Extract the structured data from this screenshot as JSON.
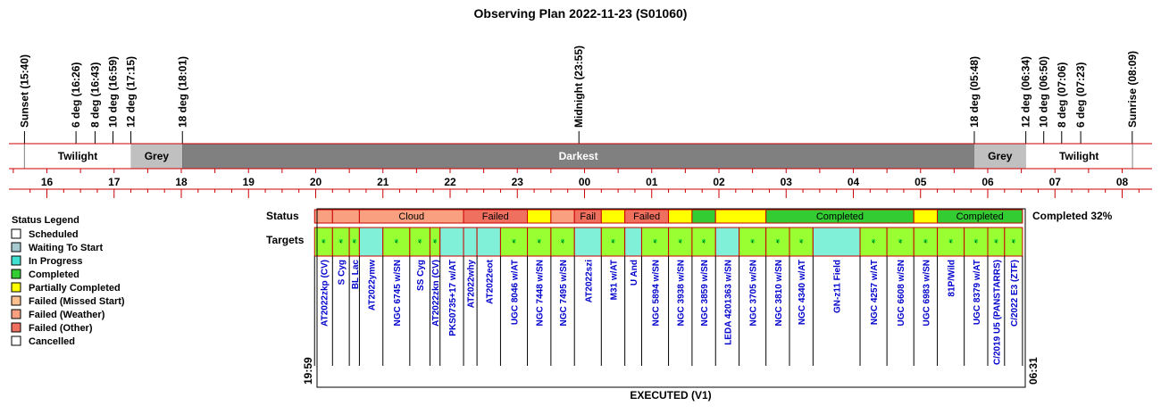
{
  "title": "Observing Plan 2022-11-23 (S01060)",
  "events": [
    {
      "label": "Sunset (15:40)",
      "t": 15.6667
    },
    {
      "label": "6 deg (16:26)",
      "t": 16.4333
    },
    {
      "label": "8 deg (16:43)",
      "t": 16.7167
    },
    {
      "label": "10 deg (16:59)",
      "t": 16.9833
    },
    {
      "label": "12 deg (17:15)",
      "t": 17.25
    },
    {
      "label": "18 deg (18:01)",
      "t": 18.0167
    },
    {
      "label": "Midnight (23:55)",
      "t": 23.9167
    },
    {
      "label": "18 deg (05:48)",
      "t": 29.8
    },
    {
      "label": "12 deg (06:34)",
      "t": 30.5667
    },
    {
      "label": "10 deg (06:50)",
      "t": 30.8333
    },
    {
      "label": "8 deg (07:06)",
      "t": 31.1
    },
    {
      "label": "6 deg (07:23)",
      "t": 31.3833
    },
    {
      "label": "Sunrise (08:09)",
      "t": 32.15
    }
  ],
  "bands": [
    {
      "label": "Twilight",
      "start": 15.6667,
      "end": 17.25,
      "color": "#ffffff"
    },
    {
      "label": "Grey",
      "start": 17.25,
      "end": 18.0167,
      "color": "#c0c0c0"
    },
    {
      "label": "Darkest",
      "start": 18.0167,
      "end": 29.8,
      "color": "#808080"
    },
    {
      "label": "Grey",
      "start": 29.8,
      "end": 30.5667,
      "color": "#c0c0c0"
    },
    {
      "label": "Twilight",
      "start": 30.5667,
      "end": 32.15,
      "color": "#ffffff"
    }
  ],
  "hours": [
    "16",
    "17",
    "18",
    "19",
    "20",
    "21",
    "22",
    "23",
    "00",
    "01",
    "02",
    "03",
    "04",
    "05",
    "06",
    "07",
    "08"
  ],
  "status_label": "Status",
  "targets_label": "Targets",
  "completed_summary": "Completed 32%",
  "footer": "EXECUTED (V1)",
  "start_time": "19:59",
  "end_time": "06:31",
  "legend": {
    "title": "Status Legend",
    "items": [
      {
        "label": "Scheduled",
        "color": "#ffffff"
      },
      {
        "label": "Waiting To Start",
        "color": "#a6cad0"
      },
      {
        "label": "In Progress",
        "color": "#40e0d0"
      },
      {
        "label": "Completed",
        "color": "#33cc33"
      },
      {
        "label": "Partially Completed",
        "color": "#ffff00"
      },
      {
        "label": "Failed (Missed Start)",
        "color": "#ffc090"
      },
      {
        "label": "Failed (Weather)",
        "color": "#f8a080"
      },
      {
        "label": "Failed (Other)",
        "color": "#f07060"
      },
      {
        "label": "Cancelled",
        "color": "#ffffff"
      }
    ]
  },
  "status_segments": [
    {
      "label": "",
      "start": 19.9833,
      "end": 20.25,
      "color": "#f8a080"
    },
    {
      "label": "",
      "start": 20.25,
      "end": 20.65,
      "color": "#f8a080"
    },
    {
      "label": "Cloud",
      "start": 20.65,
      "end": 22.2,
      "color": "#f8a080"
    },
    {
      "label": "Failed",
      "start": 22.2,
      "end": 23.15,
      "color": "#f07060"
    },
    {
      "label": "",
      "start": 23.15,
      "end": 23.5,
      "color": "#ffff00"
    },
    {
      "label": "",
      "start": 23.5,
      "end": 23.85,
      "color": "#f8a080"
    },
    {
      "label": "Fail",
      "start": 23.85,
      "end": 24.25,
      "color": "#f07060"
    },
    {
      "label": "",
      "start": 24.25,
      "end": 24.6,
      "color": "#ffff00"
    },
    {
      "label": "Failed",
      "start": 24.6,
      "end": 25.25,
      "color": "#f07060"
    },
    {
      "label": "",
      "start": 25.25,
      "end": 25.6,
      "color": "#ffff00"
    },
    {
      "label": "",
      "start": 25.6,
      "end": 25.95,
      "color": "#33cc33"
    },
    {
      "label": "",
      "start": 25.95,
      "end": 26.7,
      "color": "#ffff00"
    },
    {
      "label": "Completed",
      "start": 26.7,
      "end": 28.9,
      "color": "#33cc33"
    },
    {
      "label": "",
      "start": 28.9,
      "end": 29.25,
      "color": "#ffff00"
    },
    {
      "label": "Completed",
      "start": 29.25,
      "end": 30.5167,
      "color": "#33cc33"
    }
  ],
  "targets": [
    {
      "name": "AT2022zkp (CV)",
      "start": 19.9833,
      "end": 20.25,
      "color": "#99ff33",
      "mark": true
    },
    {
      "name": "S Cyg",
      "start": 20.25,
      "end": 20.5,
      "color": "#99ff33",
      "mark": true
    },
    {
      "name": "BL Lac",
      "start": 20.5,
      "end": 20.65,
      "color": "#99ff33",
      "mark": true
    },
    {
      "name": "AT2022ymw",
      "start": 20.65,
      "end": 21.0,
      "color": "#80f0d8",
      "mark": false
    },
    {
      "name": "NGC 6745 w/SN",
      "start": 21.0,
      "end": 21.4,
      "color": "#99ff33",
      "mark": true
    },
    {
      "name": "SS Cyg",
      "start": 21.4,
      "end": 21.7,
      "color": "#99ff33",
      "mark": true
    },
    {
      "name": "AT2022zkn (CV)",
      "start": 21.7,
      "end": 21.85,
      "color": "#99ff33",
      "mark": true
    },
    {
      "name": "PKS0735+17 w/AT",
      "start": 21.85,
      "end": 22.2,
      "color": "#80f0d8",
      "mark": false
    },
    {
      "name": "AT2022why",
      "start": 22.2,
      "end": 22.4,
      "color": "#80f0d8",
      "mark": false
    },
    {
      "name": "AT2022eot",
      "start": 22.4,
      "end": 22.75,
      "color": "#80f0d8",
      "mark": false
    },
    {
      "name": "UGC 8046 w/AT",
      "start": 22.75,
      "end": 23.15,
      "color": "#99ff33",
      "mark": true
    },
    {
      "name": "NGC 7448 w/SN",
      "start": 23.15,
      "end": 23.5,
      "color": "#99ff33",
      "mark": true
    },
    {
      "name": "NGC 7495 w/SN",
      "start": 23.5,
      "end": 23.85,
      "color": "#99ff33",
      "mark": true
    },
    {
      "name": "AT2022szi",
      "start": 23.85,
      "end": 24.25,
      "color": "#80f0d8",
      "mark": false
    },
    {
      "name": "M31 w/AT",
      "start": 24.25,
      "end": 24.6,
      "color": "#99ff33",
      "mark": true
    },
    {
      "name": "U And",
      "start": 24.6,
      "end": 24.85,
      "color": "#80f0d8",
      "mark": false
    },
    {
      "name": "NGC 5894 w/SN",
      "start": 24.85,
      "end": 25.25,
      "color": "#99ff33",
      "mark": true
    },
    {
      "name": "NGC 3938 w/SN",
      "start": 25.25,
      "end": 25.6,
      "color": "#99ff33",
      "mark": true
    },
    {
      "name": "NGC 3859 w/SN",
      "start": 25.6,
      "end": 25.95,
      "color": "#99ff33",
      "mark": true
    },
    {
      "name": "LEDA 4201363 w/SN",
      "start": 25.95,
      "end": 26.3,
      "color": "#80f0d8",
      "mark": false
    },
    {
      "name": "NGC 3705 w/SN",
      "start": 26.3,
      "end": 26.7,
      "color": "#99ff33",
      "mark": true
    },
    {
      "name": "NGC 3810 w/SN",
      "start": 26.7,
      "end": 27.05,
      "color": "#99ff33",
      "mark": true
    },
    {
      "name": "NGC 4340 w/AT",
      "start": 27.05,
      "end": 27.4,
      "color": "#99ff33",
      "mark": true
    },
    {
      "name": "GN-z11 Field",
      "start": 27.4,
      "end": 28.1,
      "color": "#80f0d8",
      "mark": false
    },
    {
      "name": "NGC 4257 w/AT",
      "start": 28.1,
      "end": 28.5,
      "color": "#99ff33",
      "mark": true
    },
    {
      "name": "UGC 6608 w/SN",
      "start": 28.5,
      "end": 28.9,
      "color": "#99ff33",
      "mark": true
    },
    {
      "name": "UGC 6983 w/SN",
      "start": 28.9,
      "end": 29.25,
      "color": "#99ff33",
      "mark": true
    },
    {
      "name": "81P/Wild",
      "start": 29.25,
      "end": 29.65,
      "color": "#99ff33",
      "mark": true
    },
    {
      "name": "UGC 8379 w/AT",
      "start": 29.65,
      "end": 30.0,
      "color": "#99ff33",
      "mark": true
    },
    {
      "name": "C/2019 U5 (PANSTARRS)",
      "start": 30.0,
      "end": 30.25,
      "color": "#99ff33",
      "mark": true
    },
    {
      "name": "C/2022 E3 (ZTF)",
      "start": 30.25,
      "end": 30.5167,
      "color": "#99ff33",
      "mark": true
    }
  ],
  "colors": {
    "axis": "#cc0000",
    "text": "#000000",
    "target_text": "#0000cc",
    "mark_cell": "#33ee33"
  }
}
